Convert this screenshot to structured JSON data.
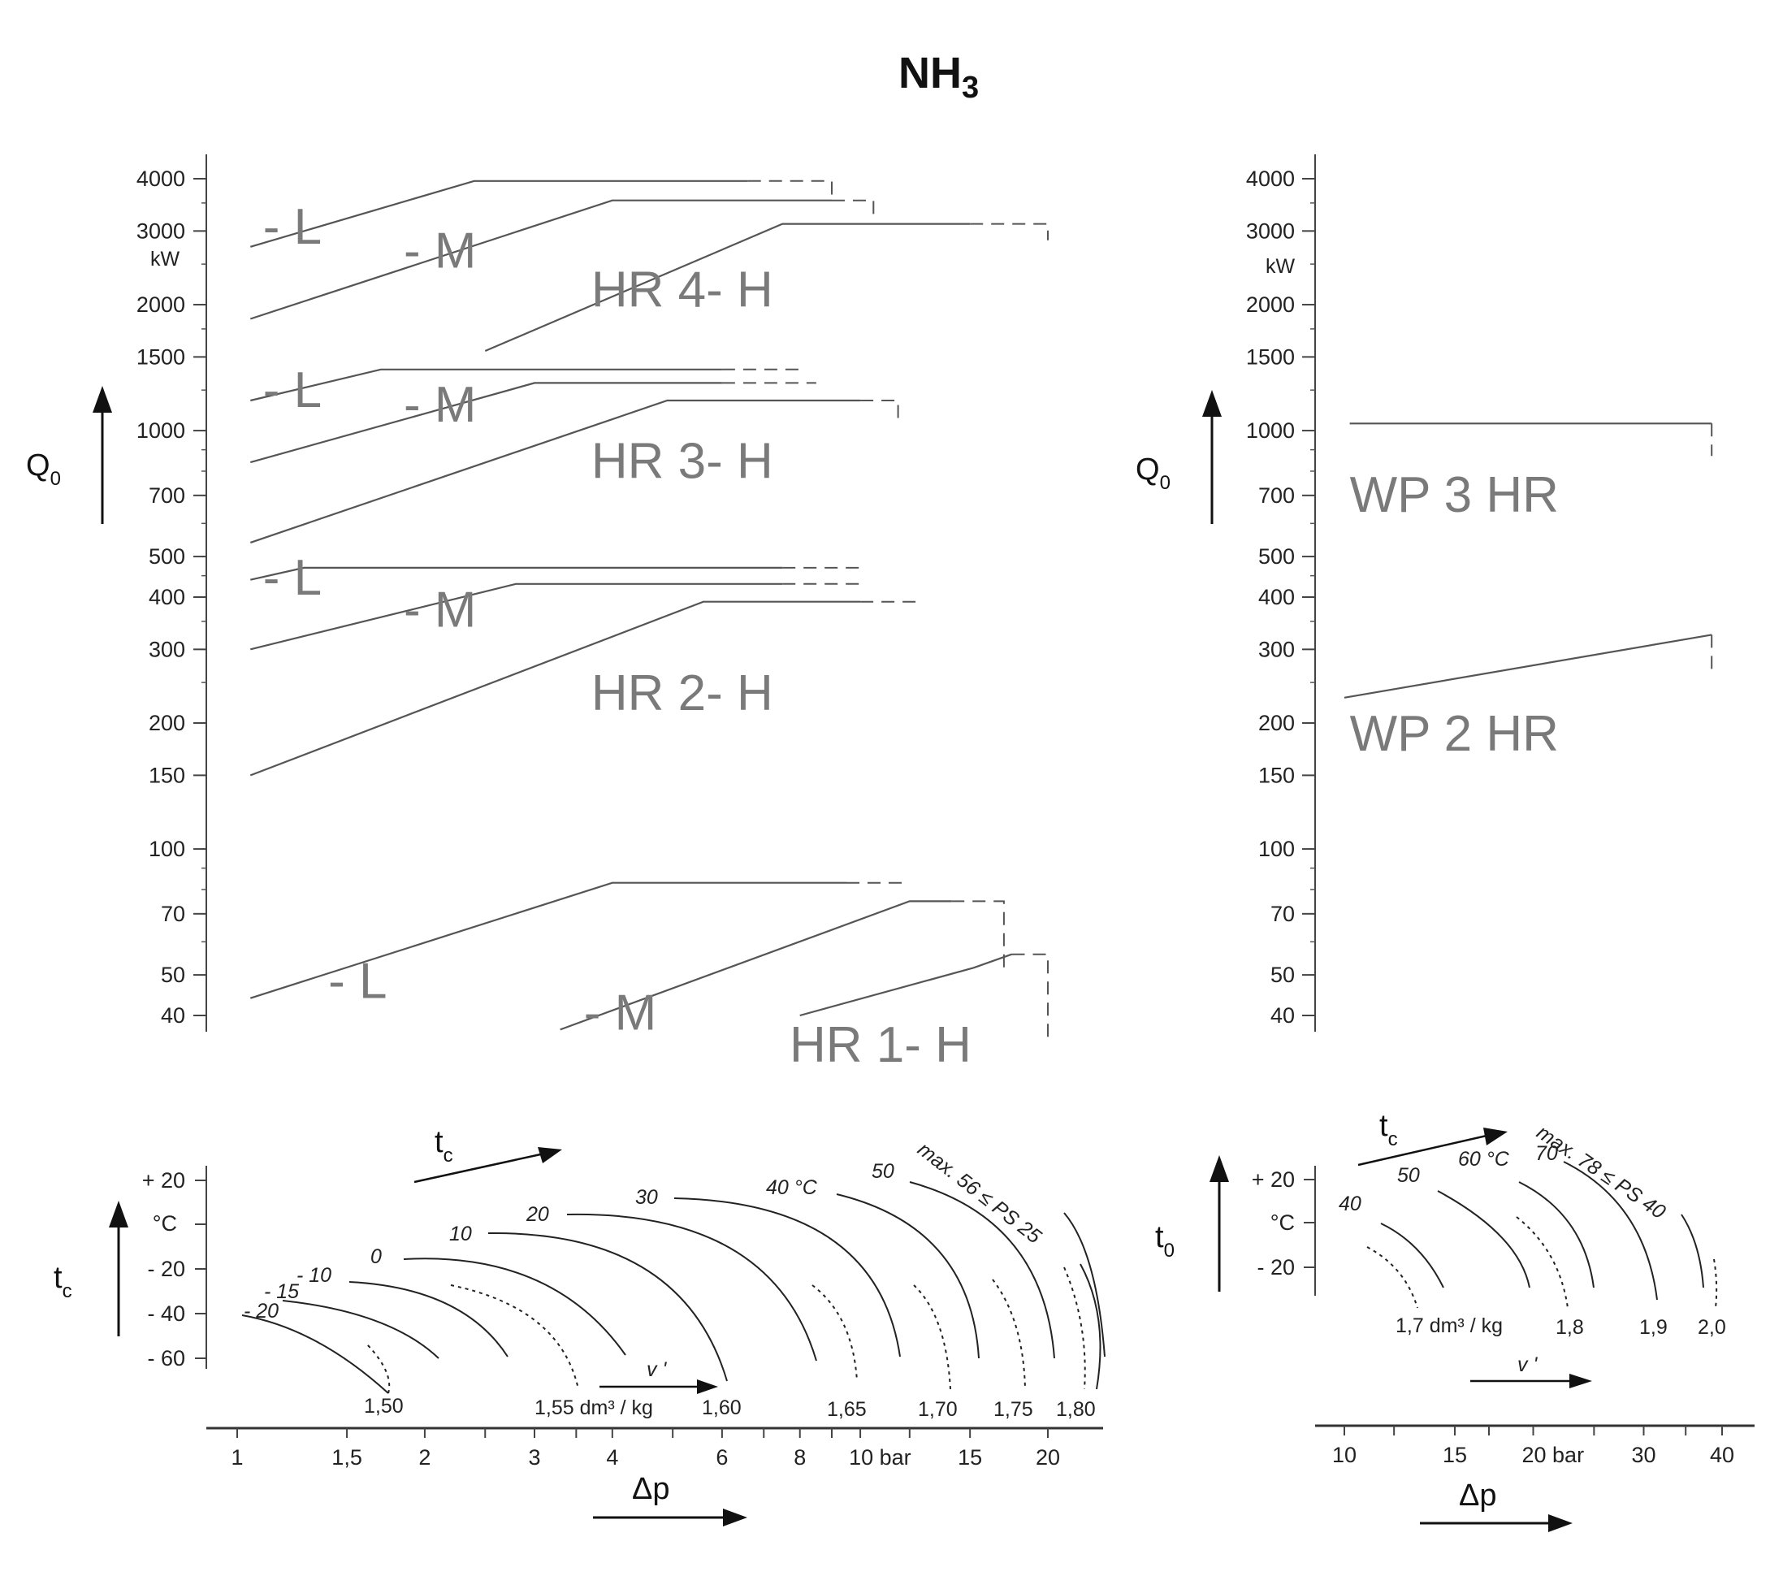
{
  "title": "NH",
  "title_sub": "3",
  "q0_axis": {
    "name": "Q",
    "name_sub": "0",
    "unit": "kW",
    "scale": "log",
    "ticks": [
      4000,
      3000,
      2000,
      1500,
      1000,
      700,
      500,
      400,
      300,
      200,
      150,
      100,
      70,
      50,
      40
    ]
  },
  "chart_data": [
    {
      "type": "line",
      "panel": "left",
      "yscale": "log",
      "ylim": [
        35,
        4200
      ],
      "x_axis": "Δp (bar)",
      "xscale": "log",
      "xlim": [
        0.97,
        23.5
      ],
      "series": [
        {
          "name": "HR 4- L",
          "points": [
            [
              1.05,
              2750
            ],
            [
              2.4,
              3950
            ],
            [
              6.6,
              3950
            ]
          ],
          "extension": [
            [
              6.6,
              3950
            ],
            [
              9.0,
              3950
            ],
            [
              9.0,
              3650
            ]
          ]
        },
        {
          "name": "HR 4- M",
          "points": [
            [
              1.05,
              1850
            ],
            [
              4.0,
              3550
            ],
            [
              9.0,
              3550
            ]
          ],
          "extension": [
            [
              9.0,
              3550
            ],
            [
              10.5,
              3550
            ],
            [
              10.5,
              3250
            ]
          ]
        },
        {
          "name": "HR 4- H",
          "points": [
            [
              2.5,
              1550
            ],
            [
              7.5,
              3120
            ],
            [
              15.0,
              3120
            ]
          ],
          "extension": [
            [
              15.0,
              3120
            ],
            [
              20.0,
              3120
            ],
            [
              20.0,
              2850
            ]
          ]
        },
        {
          "name": "HR 3- L",
          "points": [
            [
              1.05,
              1180
            ],
            [
              1.7,
              1400
            ],
            [
              6.0,
              1400
            ]
          ],
          "extension": [
            [
              6.0,
              1400
            ],
            [
              8.0,
              1400
            ]
          ]
        },
        {
          "name": "HR 3- M",
          "points": [
            [
              1.05,
              840
            ],
            [
              3.0,
              1300
            ],
            [
              6.0,
              1300
            ]
          ],
          "extension": [
            [
              6.0,
              1300
            ],
            [
              8.5,
              1300
            ]
          ]
        },
        {
          "name": "HR 3- H",
          "points": [
            [
              1.05,
              540
            ],
            [
              4.9,
              1180
            ],
            [
              10.0,
              1180
            ]
          ],
          "extension": [
            [
              10.0,
              1180
            ],
            [
              11.5,
              1180
            ],
            [
              11.5,
              1060
            ]
          ]
        },
        {
          "name": "HR 2- L",
          "points": [
            [
              1.05,
              440
            ],
            [
              1.28,
              470
            ],
            [
              7.5,
              470
            ]
          ],
          "extension": [
            [
              7.5,
              470
            ],
            [
              10.0,
              470
            ]
          ]
        },
        {
          "name": "HR 2- M",
          "points": [
            [
              1.05,
              300
            ],
            [
              2.8,
              430
            ],
            [
              7.5,
              430
            ]
          ],
          "extension": [
            [
              7.5,
              430
            ],
            [
              10.0,
              430
            ]
          ]
        },
        {
          "name": "HR 2- H",
          "points": [
            [
              1.05,
              150
            ],
            [
              5.6,
              390
            ],
            [
              10.0,
              390
            ]
          ],
          "extension": [
            [
              10.0,
              390
            ],
            [
              12.5,
              390
            ]
          ]
        },
        {
          "name": "HR 1- L",
          "points": [
            [
              1.05,
              44
            ],
            [
              4.0,
              83
            ],
            [
              9.5,
              83
            ]
          ],
          "extension": [
            [
              9.5,
              83
            ],
            [
              12.0,
              83
            ]
          ]
        },
        {
          "name": "HR 1- M",
          "points": [
            [
              3.3,
              37
            ],
            [
              12.0,
              75
            ],
            [
              14.0,
              75
            ]
          ],
          "extension": [
            [
              14.0,
              75
            ],
            [
              17.0,
              75
            ],
            [
              17.0,
              51
            ]
          ]
        },
        {
          "name": "HR 1- H",
          "points": [
            [
              8.0,
              40
            ],
            [
              15.2,
              52
            ],
            [
              17.5,
              56
            ]
          ],
          "extension": [
            [
              17.5,
              56
            ],
            [
              20.0,
              56
            ],
            [
              20.0,
              34
            ]
          ]
        }
      ]
    },
    {
      "type": "line",
      "panel": "right",
      "yscale": "log",
      "ylim": [
        35,
        4200
      ],
      "x_axis": "Δp (bar)",
      "xscale": "log",
      "xlim": [
        9.2,
        41
      ],
      "series": [
        {
          "name": "WP 3 HR",
          "points": [
            [
              10.2,
              1040
            ],
            [
              38.5,
              1040
            ]
          ],
          "extension": [
            [
              38.5,
              1040
            ],
            [
              38.5,
              870
            ]
          ]
        },
        {
          "name": "WP 2 HR",
          "points": [
            [
              10.0,
              230
            ],
            [
              38.5,
              325
            ]
          ],
          "extension": [
            [
              38.5,
              325
            ],
            [
              38.5,
              265
            ]
          ]
        }
      ]
    }
  ],
  "labels_left": [
    {
      "text": "- L",
      "x": 1.1,
      "y": 2800
    },
    {
      "text": "- M",
      "x": 1.85,
      "y": 2450
    },
    {
      "text": "HR 4- H",
      "x": 3.7,
      "y": 1980
    },
    {
      "text": "- L",
      "x": 1.1,
      "y": 1140
    },
    {
      "text": "- M",
      "x": 1.85,
      "y": 1050
    },
    {
      "text": "HR 3- H",
      "x": 3.7,
      "y": 770
    },
    {
      "text": "- L",
      "x": 1.1,
      "y": 405
    },
    {
      "text": "- M",
      "x": 1.85,
      "y": 340
    },
    {
      "text": "HR 2- H",
      "x": 3.7,
      "y": 215
    },
    {
      "text": "- L",
      "x": 1.4,
      "y": 44
    },
    {
      "text": "- M",
      "x": 3.6,
      "y": 37
    },
    {
      "text": "HR 1- H",
      "x": 7.7,
      "y": 31
    }
  ],
  "labels_right": [
    {
      "text": "WP 3 HR",
      "x": 10.2,
      "y": 640
    },
    {
      "text": "WP 2 HR",
      "x": 10.2,
      "y": 172
    }
  ],
  "tc_axis": {
    "name": "t",
    "name_sub": "c",
    "unit": "°C",
    "ticks": [
      "+ 20",
      "°C",
      "- 20",
      "- 40",
      "- 60"
    ]
  },
  "to_axis": {
    "name": "t",
    "name_sub": "0",
    "unit": "°C",
    "ticks": [
      "+ 20",
      "°C",
      "- 20"
    ]
  },
  "left_bottom": {
    "tc_arrow": "t",
    "tc_arrow_sub": "c",
    "v_arrow": "v '",
    "curve_labels": [
      "- 20",
      "- 15",
      "- 10",
      "0",
      "10",
      "20",
      "30",
      "40 °C",
      "50",
      "max. 56 ≤ PS 25"
    ],
    "v_labels": [
      "1,50",
      "1,55 dm³ / kg",
      "1,60",
      "1,65",
      "1,70",
      "1,75",
      "1,80"
    ]
  },
  "right_bottom": {
    "tc_arrow": "t",
    "tc_arrow_sub": "c",
    "v_arrow": "v '",
    "curve_labels": [
      "40",
      "50",
      "60 °C",
      "70",
      "max. 78 ≤ PS 40"
    ],
    "v_labels": [
      "1,7 dm³ / kg",
      "1,8",
      "1,9",
      "2,0"
    ]
  },
  "dp_axis_left": {
    "name": "Δp",
    "ticks": [
      "1",
      "1,5",
      "2",
      "3",
      "4",
      "6",
      "8",
      "10 bar",
      "15",
      "20"
    ]
  },
  "dp_axis_right": {
    "name": "Δp",
    "ticks": [
      "10",
      "15",
      "20 bar",
      "30",
      "40"
    ]
  }
}
